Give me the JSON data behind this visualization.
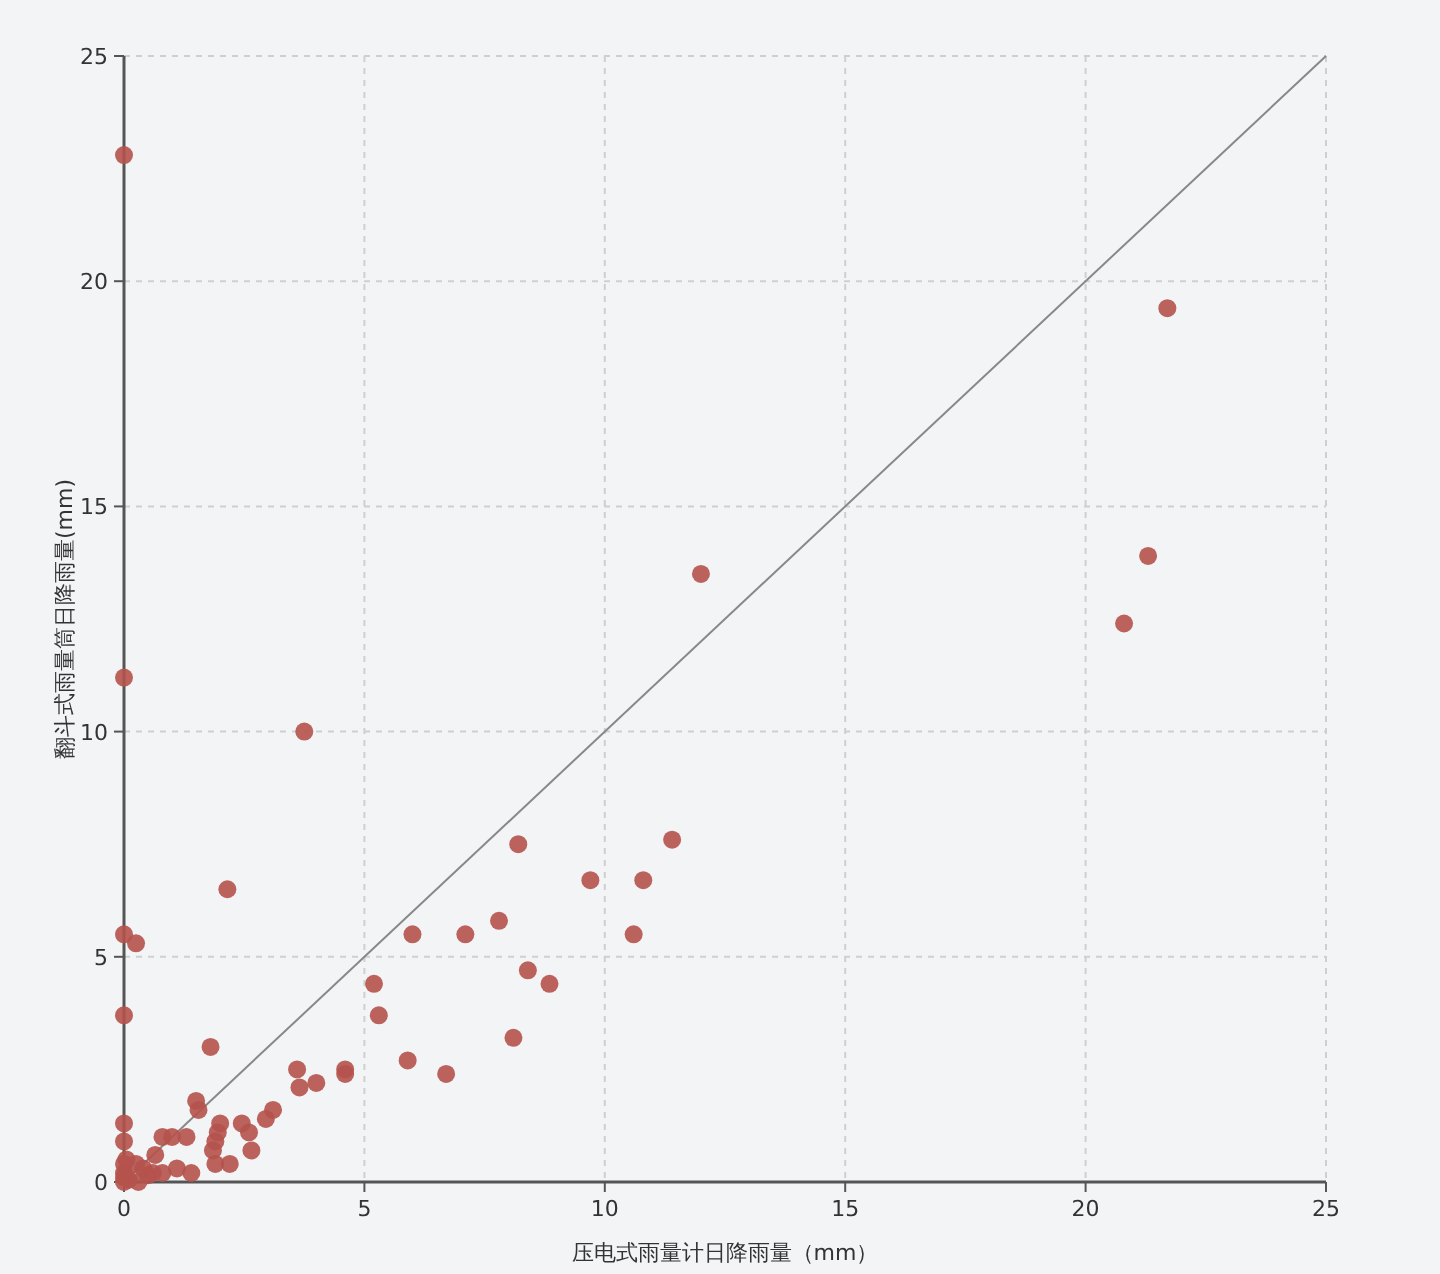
{
  "chart_data": {
    "type": "scatter",
    "xlabel": "压电式雨量计日降雨量（mm）",
    "ylabel": "翻斗式雨量筒日降雨量(mm)",
    "xlim": [
      0,
      25
    ],
    "ylim": [
      0,
      25
    ],
    "xticks": [
      0,
      5,
      10,
      15,
      20,
      25
    ],
    "yticks": [
      0,
      5,
      10,
      15,
      20,
      25
    ],
    "grid": true,
    "marker": "circle",
    "series": [
      {
        "type": "line",
        "color": "#888888",
        "marker": "none",
        "x": [
          0,
          25
        ],
        "values": [
          0,
          25
        ]
      },
      {
        "color": "#b5524c",
        "x": [
          0,
          0,
          3.75,
          21.7,
          12,
          21.3,
          20.8,
          8.2,
          11.4,
          9.7,
          10.8,
          7.8,
          6.0,
          7.1,
          10.6,
          2.15,
          0,
          0.25,
          5.2,
          8.4,
          8.85,
          5.3,
          0,
          8.1,
          1.8,
          5.9,
          6.7,
          3.6,
          4.6,
          4.6,
          3.65,
          4.0,
          1.5,
          1.55,
          3.1,
          2.95,
          2.45,
          2.6,
          2.0,
          1.95,
          1.9,
          1.85,
          2.65,
          1.9,
          2.2,
          0,
          0,
          0.8,
          1.0,
          1.3,
          0.65,
          1.1,
          1.4,
          0,
          0,
          0,
          0,
          0.1,
          0.4,
          0.5,
          0.3,
          0.6,
          0.8,
          0.25,
          0.05
        ],
        "values": [
          22.8,
          11.2,
          10,
          19.4,
          13.5,
          13.9,
          12.4,
          7.5,
          7.6,
          6.7,
          6.7,
          5.8,
          5.5,
          5.5,
          5.5,
          6.5,
          5.5,
          5.3,
          4.4,
          4.7,
          4.4,
          3.7,
          3.7,
          3.2,
          3.0,
          2.7,
          2.4,
          2.5,
          2.5,
          2.4,
          2.1,
          2.2,
          1.8,
          1.6,
          1.6,
          1.4,
          1.3,
          1.1,
          1.3,
          1.1,
          0.9,
          0.7,
          0.7,
          0.4,
          0.4,
          1.3,
          0.9,
          1.0,
          1.0,
          1.0,
          0.6,
          0.3,
          0.2,
          0.4,
          0.2,
          0.1,
          0,
          0.05,
          0.3,
          0.15,
          0,
          0.2,
          0.2,
          0.4,
          0.5
        ]
      }
    ]
  }
}
